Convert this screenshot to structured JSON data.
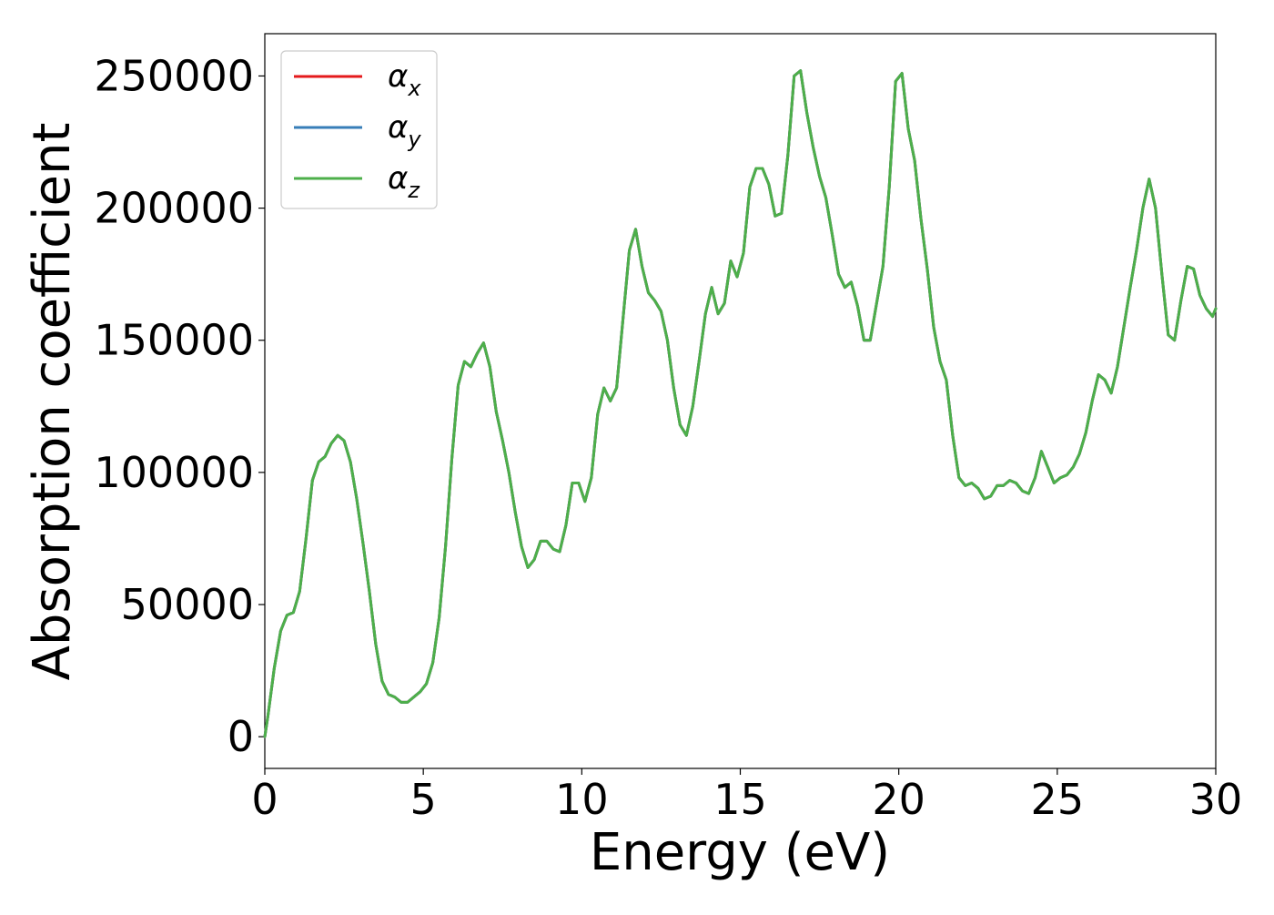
{
  "chart_data": {
    "type": "line",
    "title": "",
    "xlabel": "Energy (eV)",
    "ylabel": "Absorption coefficient",
    "xlim": [
      0,
      30
    ],
    "ylim": [
      -12000,
      266000
    ],
    "xticks": [
      0,
      5,
      10,
      15,
      20,
      25,
      30
    ],
    "yticks": [
      0,
      50000,
      100000,
      150000,
      200000,
      250000
    ],
    "grid": false,
    "legend_position": "top-left",
    "x": [
      0,
      0.1,
      0.3,
      0.5,
      0.7,
      0.9,
      1.1,
      1.3,
      1.5,
      1.7,
      1.9,
      2.1,
      2.3,
      2.5,
      2.7,
      2.9,
      3.1,
      3.3,
      3.5,
      3.7,
      3.9,
      4.1,
      4.3,
      4.5,
      4.7,
      4.9,
      5.1,
      5.3,
      5.5,
      5.7,
      5.9,
      6.1,
      6.3,
      6.5,
      6.7,
      6.9,
      7.1,
      7.3,
      7.5,
      7.7,
      7.9,
      8.1,
      8.3,
      8.5,
      8.7,
      8.9,
      9.1,
      9.3,
      9.5,
      9.7,
      9.9,
      10.1,
      10.3,
      10.5,
      10.7,
      10.9,
      11.1,
      11.3,
      11.5,
      11.7,
      11.9,
      12.1,
      12.3,
      12.5,
      12.7,
      12.9,
      13.1,
      13.3,
      13.5,
      13.7,
      13.9,
      14.1,
      14.3,
      14.5,
      14.7,
      14.9,
      15.1,
      15.3,
      15.5,
      15.7,
      15.9,
      16.1,
      16.3,
      16.5,
      16.7,
      16.9,
      17.1,
      17.3,
      17.5,
      17.7,
      17.9,
      18.1,
      18.3,
      18.5,
      18.7,
      18.9,
      19.1,
      19.3,
      19.5,
      19.7,
      19.9,
      20.1,
      20.3,
      20.5,
      20.7,
      20.9,
      21.1,
      21.3,
      21.5,
      21.7,
      21.9,
      22.1,
      22.3,
      22.5,
      22.7,
      22.9,
      23.1,
      23.3,
      23.5,
      23.7,
      23.9,
      24.1,
      24.3,
      24.5,
      24.7,
      24.9,
      25.1,
      25.3,
      25.5,
      25.7,
      25.9,
      26.1,
      26.3,
      26.5,
      26.7,
      26.9,
      27.1,
      27.3,
      27.5,
      27.7,
      27.9,
      28.1,
      28.3,
      28.5,
      28.7,
      28.9,
      29.1,
      29.3,
      29.5,
      29.7,
      29.9,
      30.0
    ],
    "series": [
      {
        "name": "α_x",
        "color": "#e41a1c",
        "values": [
          0,
          8000,
          26000,
          40000,
          46000,
          47000,
          55000,
          75000,
          97000,
          104000,
          106000,
          111000,
          114000,
          112000,
          104000,
          90000,
          73000,
          55000,
          35000,
          21000,
          16000,
          15000,
          13000,
          13000,
          15000,
          17000,
          20000,
          28000,
          45000,
          72000,
          105000,
          133000,
          142000,
          140000,
          145000,
          149000,
          140000,
          123000,
          112000,
          100000,
          85000,
          72000,
          64000,
          67000,
          74000,
          74000,
          71000,
          70000,
          80000,
          96000,
          96000,
          89000,
          98000,
          122000,
          132000,
          127000,
          132000,
          158000,
          184000,
          192000,
          178000,
          168000,
          165000,
          161000,
          150000,
          132000,
          118000,
          114000,
          125000,
          142000,
          160000,
          170000,
          160000,
          164000,
          180000,
          174000,
          183000,
          208000,
          215000,
          215000,
          209000,
          197000,
          198000,
          220000,
          250000,
          252000,
          236000,
          223000,
          212000,
          204000,
          190000,
          175000,
          170000,
          172000,
          163000,
          150000,
          150000,
          164000,
          178000,
          208000,
          248000,
          251000,
          230000,
          218000,
          196000,
          177000,
          155000,
          142000,
          135000,
          114000,
          98000,
          95000,
          96000,
          94000,
          90000,
          91000,
          95000,
          95000,
          97000,
          96000,
          93000,
          92000,
          98000,
          108000,
          102000,
          96000,
          98000,
          99000,
          102000,
          107000,
          115000,
          127000,
          137000,
          135000,
          130000,
          140000,
          155000,
          170000,
          184000,
          200000,
          211000,
          200000,
          175000,
          152000,
          150000,
          165000,
          178000,
          177000,
          167000,
          162000,
          159000,
          162000
        ]
      },
      {
        "name": "α_y",
        "color": "#377eb8",
        "values": [
          0,
          8000,
          26000,
          40000,
          46000,
          47000,
          55000,
          75000,
          97000,
          104000,
          106000,
          111000,
          114000,
          112000,
          104000,
          90000,
          73000,
          55000,
          35000,
          21000,
          16000,
          15000,
          13000,
          13000,
          15000,
          17000,
          20000,
          28000,
          45000,
          72000,
          105000,
          133000,
          142000,
          140000,
          145000,
          149000,
          140000,
          123000,
          112000,
          100000,
          85000,
          72000,
          64000,
          67000,
          74000,
          74000,
          71000,
          70000,
          80000,
          96000,
          96000,
          89000,
          98000,
          122000,
          132000,
          127000,
          132000,
          158000,
          184000,
          192000,
          178000,
          168000,
          165000,
          161000,
          150000,
          132000,
          118000,
          114000,
          125000,
          142000,
          160000,
          170000,
          160000,
          164000,
          180000,
          174000,
          183000,
          208000,
          215000,
          215000,
          209000,
          197000,
          198000,
          220000,
          250000,
          252000,
          236000,
          223000,
          212000,
          204000,
          190000,
          175000,
          170000,
          172000,
          163000,
          150000,
          150000,
          164000,
          178000,
          208000,
          248000,
          251000,
          230000,
          218000,
          196000,
          177000,
          155000,
          142000,
          135000,
          114000,
          98000,
          95000,
          96000,
          94000,
          90000,
          91000,
          95000,
          95000,
          97000,
          96000,
          93000,
          92000,
          98000,
          108000,
          102000,
          96000,
          98000,
          99000,
          102000,
          107000,
          115000,
          127000,
          137000,
          135000,
          130000,
          140000,
          155000,
          170000,
          184000,
          200000,
          211000,
          200000,
          175000,
          152000,
          150000,
          165000,
          178000,
          177000,
          167000,
          162000,
          159000,
          162000
        ]
      },
      {
        "name": "α_z",
        "color": "#4daf4a",
        "values": [
          0,
          8000,
          26000,
          40000,
          46000,
          47000,
          55000,
          75000,
          97000,
          104000,
          106000,
          111000,
          114000,
          112000,
          104000,
          90000,
          73000,
          55000,
          35000,
          21000,
          16000,
          15000,
          13000,
          13000,
          15000,
          17000,
          20000,
          28000,
          45000,
          72000,
          105000,
          133000,
          142000,
          140000,
          145000,
          149000,
          140000,
          123000,
          112000,
          100000,
          85000,
          72000,
          64000,
          67000,
          74000,
          74000,
          71000,
          70000,
          80000,
          96000,
          96000,
          89000,
          98000,
          122000,
          132000,
          127000,
          132000,
          158000,
          184000,
          192000,
          178000,
          168000,
          165000,
          161000,
          150000,
          132000,
          118000,
          114000,
          125000,
          142000,
          160000,
          170000,
          160000,
          164000,
          180000,
          174000,
          183000,
          208000,
          215000,
          215000,
          209000,
          197000,
          198000,
          220000,
          250000,
          252000,
          236000,
          223000,
          212000,
          204000,
          190000,
          175000,
          170000,
          172000,
          163000,
          150000,
          150000,
          164000,
          178000,
          208000,
          248000,
          251000,
          230000,
          218000,
          196000,
          177000,
          155000,
          142000,
          135000,
          114000,
          98000,
          95000,
          96000,
          94000,
          90000,
          91000,
          95000,
          95000,
          97000,
          96000,
          93000,
          92000,
          98000,
          108000,
          102000,
          96000,
          98000,
          99000,
          102000,
          107000,
          115000,
          127000,
          137000,
          135000,
          130000,
          140000,
          155000,
          170000,
          184000,
          200000,
          211000,
          200000,
          175000,
          152000,
          150000,
          165000,
          178000,
          177000,
          167000,
          162000,
          159000,
          162000
        ]
      }
    ],
    "legend": {
      "entries": [
        {
          "symbol": "α",
          "subscript": "x",
          "color": "#e41a1c"
        },
        {
          "symbol": "α",
          "subscript": "y",
          "color": "#377eb8"
        },
        {
          "symbol": "α",
          "subscript": "z",
          "color": "#4daf4a"
        }
      ]
    }
  }
}
